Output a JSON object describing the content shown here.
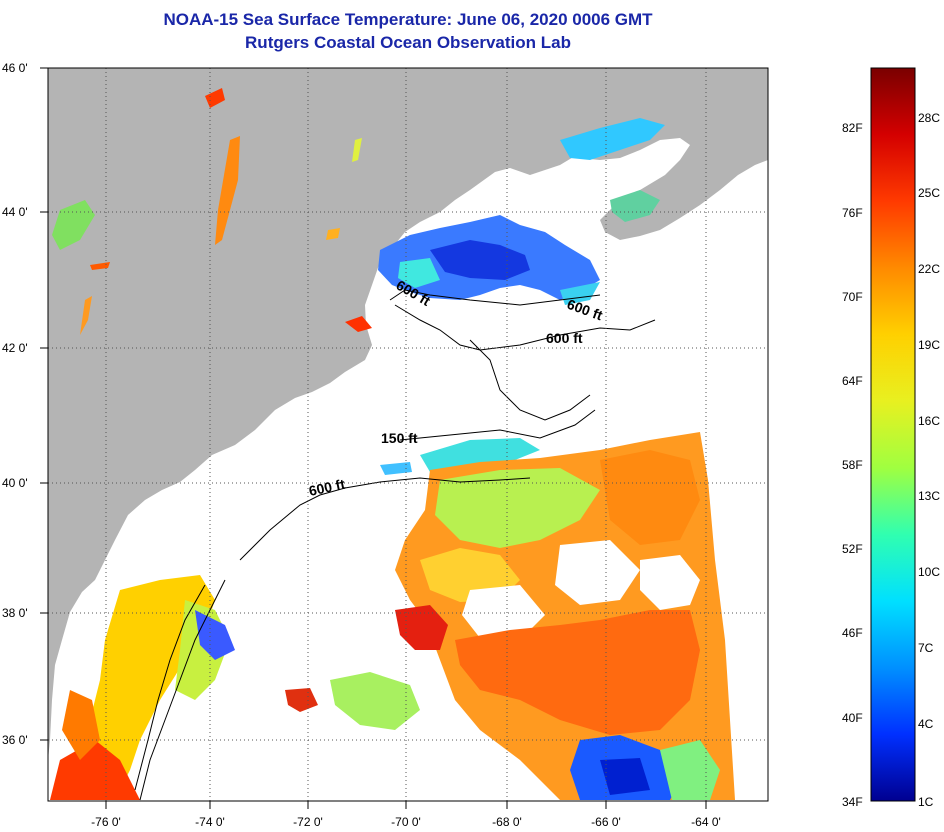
{
  "title_line1": "NOAA-15 Sea Surface Temperature:  June 06, 2020 0006 GMT",
  "title_line2": "Rutgers Coastal Ocean Observation Lab",
  "map": {
    "lon_ticks": [
      "-76 0'",
      "-74 0'",
      "-72 0'",
      "-70 0'",
      "-68 0'",
      "-66 0'",
      "-64 0'"
    ],
    "lat_ticks": [
      "46 0'",
      "44 0'",
      "42 0'",
      "40 0'",
      "38 0'",
      "36 0'"
    ],
    "contour_labels": [
      "600 ft",
      "600 ft",
      "600 ft",
      "150 ft",
      "600 ft"
    ],
    "land_color": "#b4b4b4",
    "no_data_color": "#ffffff"
  },
  "colorbar": {
    "f_labels": [
      "82F",
      "76F",
      "70F",
      "64F",
      "58F",
      "52F",
      "46F",
      "40F",
      "34F"
    ],
    "c_labels": [
      "28C",
      "25C",
      "22C",
      "19C",
      "16C",
      "13C",
      "10C",
      "7C",
      "4C",
      "1C"
    ],
    "colors": [
      "#7a0000",
      "#d40000",
      "#ff3a00",
      "#ff8a00",
      "#ffd000",
      "#e8f020",
      "#a0ff40",
      "#30ffb0",
      "#00e0ff",
      "#0090ff",
      "#0030ff",
      "#000090"
    ]
  }
}
